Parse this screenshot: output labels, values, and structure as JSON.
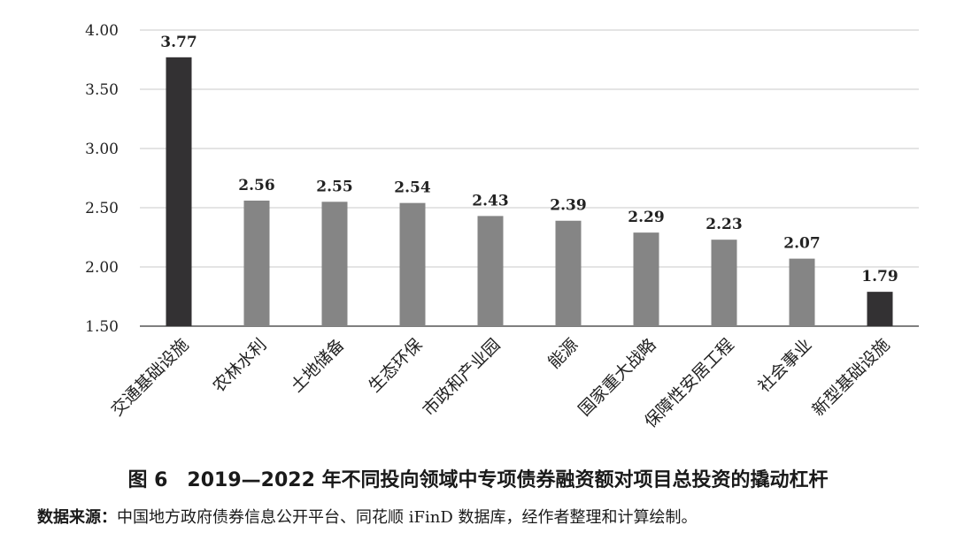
{
  "chart_data": {
    "type": "bar",
    "categories": [
      "交通基础设施",
      "农林水利",
      "土地储备",
      "生态环保",
      "市政和产业园",
      "能源",
      "国家重大战略",
      "保障性安居工程",
      "社会事业",
      "新型基础设施"
    ],
    "values": [
      3.77,
      2.56,
      2.55,
      2.54,
      2.43,
      2.39,
      2.29,
      2.23,
      2.07,
      1.79
    ],
    "value_labels": [
      "3.77",
      "2.56",
      "2.55",
      "2.54",
      "2.43",
      "2.39",
      "2.29",
      "2.23",
      "2.07",
      "1.79"
    ],
    "bar_colors": [
      "#333133",
      "#858585",
      "#858585",
      "#858585",
      "#858585",
      "#858585",
      "#858585",
      "#858585",
      "#858585",
      "#333133"
    ],
    "ylim": [
      1.5,
      4.0
    ],
    "yticks": [
      "1.50",
      "2.00",
      "2.50",
      "3.00",
      "3.50",
      "4.00"
    ],
    "grid": true,
    "legend": "none"
  },
  "caption": "图 6　2019—2022 年不同投向领域中专项债券融资额对项目总投资的撬动杠杆",
  "source": {
    "label": "数据来源：",
    "text": "中国地方政府债券信息公开平台、同花顺 iFinD 数据库，经作者整理和计算绘制。"
  },
  "colors": {
    "gridline": "#c8c8c8",
    "axis": "#555555"
  }
}
